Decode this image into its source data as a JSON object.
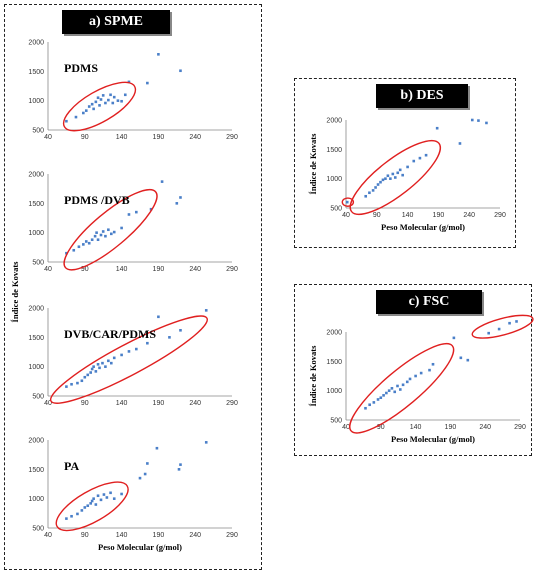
{
  "panels": {
    "spme_title": "a) SPME",
    "des_title": "b) DES",
    "fsc_title": "c) FSC"
  },
  "colors": {
    "points": "#4a7fc8",
    "ellipse": "#e02020"
  },
  "chart_data": [
    {
      "id": "pdms",
      "type": "scatter",
      "label": "PDMS",
      "xlim": [
        40,
        290
      ],
      "ylim": [
        500,
        2000
      ],
      "xticks": [
        40,
        90,
        140,
        190,
        240,
        290
      ],
      "yticks": [
        500,
        1000,
        1500,
        2000
      ],
      "xlabel": "",
      "ylabel": "",
      "points": [
        [
          65,
          650
        ],
        [
          78,
          720
        ],
        [
          88,
          790
        ],
        [
          92,
          830
        ],
        [
          96,
          900
        ],
        [
          100,
          940
        ],
        [
          102,
          860
        ],
        [
          105,
          980
        ],
        [
          108,
          1050
        ],
        [
          110,
          920
        ],
        [
          112,
          1020
        ],
        [
          115,
          1090
        ],
        [
          118,
          960
        ],
        [
          122,
          1010
        ],
        [
          125,
          1100
        ],
        [
          128,
          960
        ],
        [
          130,
          1060
        ],
        [
          135,
          1000
        ],
        [
          140,
          990
        ],
        [
          145,
          1100
        ],
        [
          150,
          1320
        ],
        [
          175,
          1300
        ],
        [
          190,
          1790
        ],
        [
          220,
          1510
        ]
      ],
      "ellipses": [
        {
          "cx": 110,
          "cy": 900,
          "rx": 55,
          "ry": 260,
          "rot": -30
        }
      ]
    },
    {
      "id": "pdms-dvb",
      "type": "scatter",
      "label": "PDMS /DVB",
      "xlim": [
        40,
        290
      ],
      "ylim": [
        500,
        2000
      ],
      "xticks": [
        40,
        90,
        140,
        190,
        240,
        290
      ],
      "yticks": [
        500,
        1000,
        1500,
        2000
      ],
      "xlabel": "",
      "ylabel": "",
      "points": [
        [
          65,
          650
        ],
        [
          75,
          700
        ],
        [
          82,
          760
        ],
        [
          88,
          800
        ],
        [
          92,
          850
        ],
        [
          96,
          820
        ],
        [
          100,
          880
        ],
        [
          104,
          940
        ],
        [
          106,
          1000
        ],
        [
          108,
          880
        ],
        [
          112,
          960
        ],
        [
          115,
          1020
        ],
        [
          118,
          940
        ],
        [
          122,
          1050
        ],
        [
          126,
          980
        ],
        [
          130,
          1010
        ],
        [
          140,
          1080
        ],
        [
          150,
          1310
        ],
        [
          160,
          1350
        ],
        [
          180,
          1400
        ],
        [
          195,
          1870
        ],
        [
          215,
          1500
        ],
        [
          220,
          1600
        ]
      ],
      "ellipses": [
        {
          "cx": 125,
          "cy": 1050,
          "rx": 80,
          "ry": 290,
          "rot": -40
        }
      ]
    },
    {
      "id": "dvb-car-pdms",
      "type": "scatter",
      "label": "DVB/CAR/PDMS",
      "xlim": [
        40,
        290
      ],
      "ylim": [
        500,
        2000
      ],
      "xticks": [
        40,
        90,
        140,
        190,
        240,
        290
      ],
      "yticks": [
        500,
        1000,
        1500,
        2000
      ],
      "xlabel": "",
      "ylabel": "Índice de Kovats",
      "points": [
        [
          65,
          660
        ],
        [
          72,
          700
        ],
        [
          80,
          720
        ],
        [
          86,
          760
        ],
        [
          90,
          820
        ],
        [
          94,
          860
        ],
        [
          98,
          900
        ],
        [
          100,
          960
        ],
        [
          102,
          1000
        ],
        [
          105,
          920
        ],
        [
          108,
          1040
        ],
        [
          110,
          980
        ],
        [
          114,
          1060
        ],
        [
          118,
          1000
        ],
        [
          122,
          1100
        ],
        [
          126,
          1060
        ],
        [
          130,
          1150
        ],
        [
          140,
          1200
        ],
        [
          150,
          1260
        ],
        [
          160,
          1300
        ],
        [
          175,
          1400
        ],
        [
          190,
          1850
        ],
        [
          205,
          1500
        ],
        [
          220,
          1620
        ],
        [
          255,
          1960
        ]
      ],
      "ellipses": [
        {
          "cx": 150,
          "cy": 1120,
          "rx": 120,
          "ry": 260,
          "rot": -28
        }
      ]
    },
    {
      "id": "pa",
      "type": "scatter",
      "label": "PA",
      "xlim": [
        40,
        290
      ],
      "ylim": [
        500,
        2000
      ],
      "xticks": [
        40,
        90,
        140,
        190,
        240,
        290
      ],
      "yticks": [
        500,
        1000,
        1500,
        2000
      ],
      "xlabel": "Peso Molecular  (g/mol)",
      "ylabel": "",
      "points": [
        [
          65,
          660
        ],
        [
          72,
          700
        ],
        [
          80,
          740
        ],
        [
          86,
          800
        ],
        [
          90,
          850
        ],
        [
          94,
          880
        ],
        [
          98,
          920
        ],
        [
          100,
          960
        ],
        [
          102,
          1000
        ],
        [
          105,
          900
        ],
        [
          108,
          1050
        ],
        [
          112,
          980
        ],
        [
          116,
          1070
        ],
        [
          120,
          1020
        ],
        [
          125,
          1100
        ],
        [
          130,
          1000
        ],
        [
          140,
          1080
        ],
        [
          165,
          1350
        ],
        [
          172,
          1420
        ],
        [
          175,
          1600
        ],
        [
          188,
          1860
        ],
        [
          218,
          1500
        ],
        [
          220,
          1580
        ],
        [
          255,
          1960
        ]
      ],
      "ellipses": [
        {
          "cx": 100,
          "cy": 870,
          "rx": 55,
          "ry": 260,
          "rot": -30
        }
      ]
    },
    {
      "id": "des",
      "type": "scatter",
      "label": "",
      "xlim": [
        40,
        290
      ],
      "ylim": [
        500,
        2000
      ],
      "xticks": [
        40,
        90,
        140,
        190,
        240,
        290
      ],
      "yticks": [
        500,
        1000,
        1500,
        2000
      ],
      "xlabel": "Peso Molecular (g/mol)",
      "ylabel": "Índice de Kovats",
      "points": [
        [
          42,
          600
        ],
        [
          72,
          700
        ],
        [
          78,
          760
        ],
        [
          84,
          800
        ],
        [
          88,
          850
        ],
        [
          92,
          900
        ],
        [
          96,
          940
        ],
        [
          100,
          980
        ],
        [
          104,
          1000
        ],
        [
          108,
          1050
        ],
        [
          112,
          1000
        ],
        [
          116,
          1080
        ],
        [
          120,
          1020
        ],
        [
          124,
          1100
        ],
        [
          128,
          1150
        ],
        [
          132,
          1060
        ],
        [
          140,
          1200
        ],
        [
          150,
          1300
        ],
        [
          160,
          1350
        ],
        [
          170,
          1400
        ],
        [
          188,
          1860
        ],
        [
          225,
          1600
        ],
        [
          245,
          2000
        ],
        [
          255,
          1990
        ],
        [
          268,
          1950
        ]
      ],
      "ellipses": [
        {
          "cx": 120,
          "cy": 1020,
          "rx": 90,
          "ry": 300,
          "rot": -38
        },
        {
          "cx": 43,
          "cy": 600,
          "rx": 9,
          "ry": 70,
          "rot": 0
        }
      ]
    },
    {
      "id": "fsc",
      "type": "scatter",
      "label": "",
      "xlim": [
        40,
        290
      ],
      "ylim": [
        500,
        2000
      ],
      "xticks": [
        40,
        90,
        140,
        190,
        240,
        290
      ],
      "yticks": [
        500,
        1000,
        1500,
        2000
      ],
      "xlabel": "Peso Molecular (g/mol)",
      "ylabel": "Índice de Kovats",
      "points": [
        [
          68,
          700
        ],
        [
          74,
          760
        ],
        [
          80,
          800
        ],
        [
          86,
          850
        ],
        [
          90,
          880
        ],
        [
          94,
          920
        ],
        [
          98,
          960
        ],
        [
          102,
          1000
        ],
        [
          106,
          1040
        ],
        [
          110,
          980
        ],
        [
          114,
          1080
        ],
        [
          118,
          1020
        ],
        [
          122,
          1100
        ],
        [
          128,
          1150
        ],
        [
          132,
          1200
        ],
        [
          140,
          1250
        ],
        [
          148,
          1300
        ],
        [
          160,
          1350
        ],
        [
          165,
          1450
        ],
        [
          195,
          1900
        ],
        [
          205,
          1560
        ],
        [
          215,
          1520
        ],
        [
          245,
          1980
        ],
        [
          260,
          2050
        ],
        [
          275,
          2150
        ],
        [
          285,
          2180
        ]
      ],
      "ellipses": [
        {
          "cx": 120,
          "cy": 1040,
          "rx": 95,
          "ry": 300,
          "rot": -40
        },
        {
          "cx": 265,
          "cy": 2090,
          "rx": 45,
          "ry": 140,
          "rot": -15
        }
      ]
    }
  ]
}
